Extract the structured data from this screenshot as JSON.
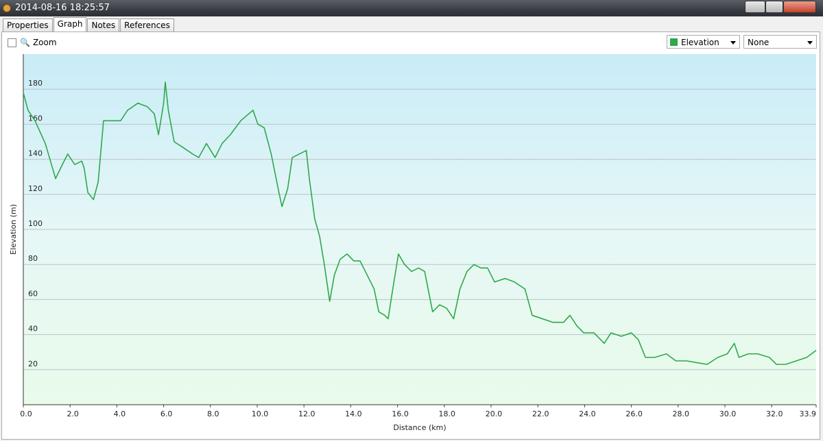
{
  "window": {
    "title": "2014-08-16 18:25:57"
  },
  "tabs": [
    "Properties",
    "Graph",
    "Notes",
    "References"
  ],
  "active_tab": 1,
  "toolbar": {
    "zoom_label": "Zoom",
    "second_select": "None"
  },
  "chart_data": {
    "type": "line",
    "xlabel": "Distance (km)",
    "ylabel": "Elevation (m)",
    "x": [
      0,
      0.2,
      0.5,
      0.94,
      1.38,
      1.67,
      1.9,
      2.2,
      2.5,
      2.6,
      2.76,
      3.0,
      3.2,
      3.43,
      3.72,
      4.16,
      4.46,
      4.9,
      5.3,
      5.6,
      5.78,
      6.0,
      6.07,
      6.2,
      6.45,
      6.8,
      7.24,
      7.5,
      7.83,
      8.2,
      8.5,
      8.85,
      9.3,
      9.82,
      10.03,
      10.3,
      10.6,
      10.9,
      11.06,
      11.3,
      11.5,
      11.8,
      12.1,
      12.23,
      12.46,
      12.67,
      12.87,
      13.1,
      13.3,
      13.55,
      13.84,
      14.13,
      14.4,
      14.7,
      15.0,
      15.2,
      15.45,
      15.6,
      15.75,
      16.04,
      16.3,
      16.6,
      16.9,
      17.16,
      17.5,
      17.8,
      18.1,
      18.4,
      18.67,
      18.97,
      19.27,
      19.56,
      19.85,
      20.15,
      20.6,
      21.0,
      21.45,
      21.76,
      22.2,
      22.64,
      23.1,
      23.37,
      23.67,
      23.96,
      24.4,
      24.84,
      25.13,
      25.57,
      26.0,
      26.3,
      26.6,
      27.0,
      27.5,
      27.9,
      28.36,
      28.8,
      29.24,
      29.7,
      30.1,
      30.4,
      30.6,
      31.0,
      31.4,
      31.9,
      32.2,
      32.6,
      33.05,
      33.5,
      33.9
    ],
    "series": [
      {
        "name": "Elevation",
        "color": "#2ea84a",
        "values": [
          178,
          168,
          162,
          149,
          129,
          137,
          143,
          137,
          139,
          135,
          121,
          117,
          127,
          162,
          162,
          162,
          168,
          172,
          170,
          166,
          154,
          172,
          184,
          168,
          150,
          147,
          143,
          141,
          149,
          141,
          149,
          154,
          162,
          168,
          160,
          158,
          143,
          123,
          113,
          123,
          141,
          143,
          145,
          129,
          106,
          96,
          80,
          59,
          74,
          83,
          86,
          82,
          82,
          74,
          66,
          53,
          51,
          49,
          62,
          86,
          80,
          76,
          78,
          76,
          53,
          57,
          55,
          49,
          66,
          76,
          80,
          78,
          78,
          70,
          72,
          70,
          66,
          51,
          49,
          47,
          47,
          51,
          45,
          41,
          41,
          35,
          41,
          39,
          41,
          37,
          27,
          27,
          29,
          25,
          25,
          24,
          23,
          27,
          29,
          35,
          27,
          29,
          29,
          27,
          23,
          23,
          25,
          27,
          31
        ]
      }
    ],
    "xlim": [
      0,
      33.9
    ],
    "ylim": [
      0,
      200
    ],
    "xticks": [
      {
        "value": 0,
        "label": "0.0"
      },
      {
        "value": 2,
        "label": "2.0"
      },
      {
        "value": 4,
        "label": "4.0"
      },
      {
        "value": 6,
        "label": "6.0"
      },
      {
        "value": 8,
        "label": "8.0"
      },
      {
        "value": 10,
        "label": "10.0"
      },
      {
        "value": 12,
        "label": "12.0"
      },
      {
        "value": 14,
        "label": "14.0"
      },
      {
        "value": 16,
        "label": "16.0"
      },
      {
        "value": 18,
        "label": "18.0"
      },
      {
        "value": 20,
        "label": "20.0"
      },
      {
        "value": 22,
        "label": "22.0"
      },
      {
        "value": 24,
        "label": "24.0"
      },
      {
        "value": 26,
        "label": "26.0"
      },
      {
        "value": 28,
        "label": "28.0"
      },
      {
        "value": 30,
        "label": "30.0"
      },
      {
        "value": 32,
        "label": "32.0"
      },
      33.9
    ],
    "yticks": [
      20,
      40,
      60,
      80,
      100,
      120,
      140,
      160,
      180
    ],
    "grid": true
  }
}
